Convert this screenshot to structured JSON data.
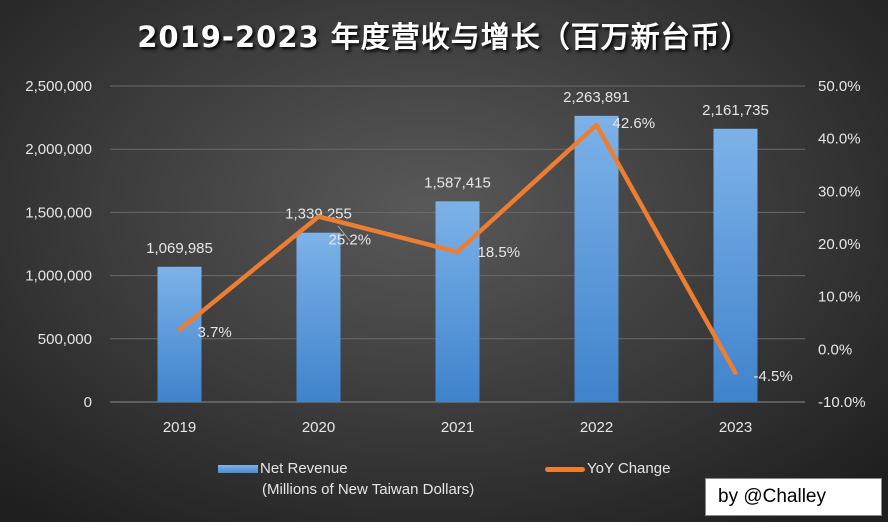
{
  "chart_data": {
    "type": "bar+line",
    "title": "2019-2023 年度营收与增长（百万新台币）",
    "categories": [
      "2019",
      "2020",
      "2021",
      "2022",
      "2023"
    ],
    "series": [
      {
        "name": "Net Revenue\n(Millions of New Taiwan Dollars)",
        "type": "bar",
        "axis": "left",
        "values": [
          1069985,
          1339255,
          1587415,
          2263891,
          2161735
        ],
        "labels": [
          "1,069,985",
          "1,339,255",
          "1,587,415",
          "2,263,891",
          "2,161,735"
        ],
        "color": "#5b9bd5"
      },
      {
        "name": "YoY Change",
        "type": "line",
        "axis": "right",
        "values": [
          3.7,
          25.2,
          18.5,
          42.6,
          -4.5
        ],
        "labels": [
          "3.7%",
          "25.2%",
          "18.5%",
          "42.6%",
          "-4.5%"
        ],
        "color": "#ed7d31"
      }
    ],
    "yleft": {
      "lim": [
        0,
        2500000
      ],
      "ticks": [
        "0",
        "500,000",
        "1,000,000",
        "1,500,000",
        "2,000,000",
        "2,500,000"
      ]
    },
    "yright": {
      "lim": [
        -10,
        50
      ],
      "ticks": [
        "-10.0%",
        "0.0%",
        "10.0%",
        "20.0%",
        "30.0%",
        "40.0%",
        "50.0%"
      ]
    },
    "grid": true,
    "legend": "bottom"
  },
  "legend": {
    "bar_line1": "Net Revenue",
    "bar_line2": "(Millions of New Taiwan Dollars)",
    "line": "YoY Change"
  },
  "signature": "by @Challey",
  "background": "#3a3a3a"
}
